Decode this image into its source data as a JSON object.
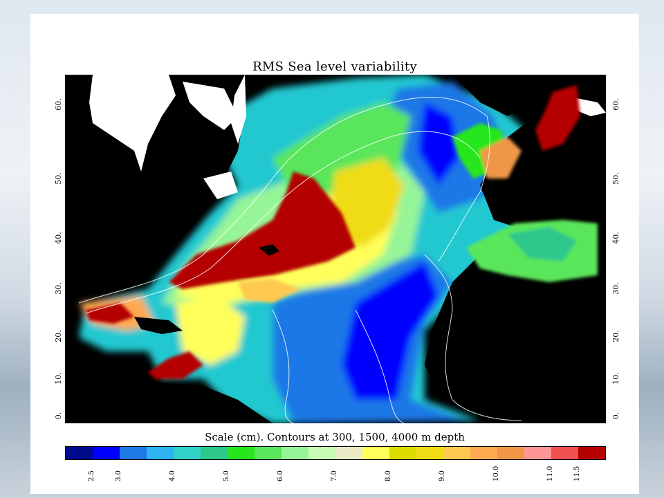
{
  "title": "RMS Sea level variability",
  "scale_caption": "Scale (cm). Contours at 300, 1500, 4000 m depth",
  "latitude_labels": [
    "60.",
    "50.",
    "40.",
    "30.",
    "20.",
    "10.",
    "0."
  ],
  "colorbar": {
    "colors": [
      "#000a8c",
      "#0000ff",
      "#1e78e6",
      "#2db4f0",
      "#32d2c8",
      "#2dc88c",
      "#28e61e",
      "#5ae65a",
      "#96f596",
      "#c8fab4",
      "#ebebc8",
      "#ffff5a",
      "#dcdc00",
      "#f0dc14",
      "#ffc850",
      "#ffaa50",
      "#f09646",
      "#ff9696",
      "#f05050",
      "#b40000"
    ],
    "tick_labels": [
      "2.5",
      "3.0",
      "4.0",
      "5.0",
      "6.0",
      "7.0",
      "8.0",
      "9.0",
      "10.0",
      "11.0",
      "11.5"
    ],
    "tick_positions": [
      2.5,
      3.0,
      4.0,
      5.0,
      6.0,
      7.0,
      8.0,
      9.0,
      10.0,
      11.0,
      11.5
    ]
  },
  "colors": {
    "land": "#000000",
    "ice": "#ffffff",
    "contour": "#ffffff"
  }
}
